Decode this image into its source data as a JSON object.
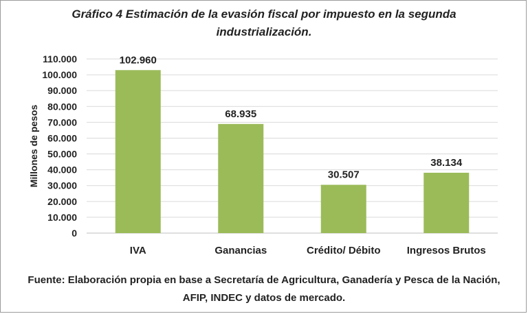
{
  "chart_data": {
    "type": "bar",
    "title": "Gráfico 4 Estimación de la evasión fiscal por impuesto en la segunda industrialización.",
    "xlabel": "",
    "ylabel": "Millones de pesos",
    "categories": [
      "IVA",
      "Ganancias",
      "Crédito/ Débito",
      "Ingresos Brutos"
    ],
    "values": [
      102960,
      68935,
      30507,
      38134
    ],
    "data_labels": [
      "102.960",
      "68.935",
      "30.507",
      "38.134"
    ],
    "yticks": [
      0,
      10000,
      20000,
      30000,
      40000,
      50000,
      60000,
      70000,
      80000,
      90000,
      100000,
      110000
    ],
    "ytick_labels": [
      "0",
      "10.000",
      "20.000",
      "30.000",
      "40.000",
      "50.000",
      "60.000",
      "70.000",
      "80.000",
      "90.000",
      "100.000",
      "110.000"
    ],
    "ylim": [
      0,
      110000
    ],
    "grid": true,
    "legend": "none",
    "bar_color": "#9bbb59",
    "grid_color": "#d9d9d9"
  },
  "source": "Fuente: Elaboración propia en base a Secretaría de Agricultura, Ganadería y Pesca de la Nación, AFIP, INDEC y datos de mercado."
}
